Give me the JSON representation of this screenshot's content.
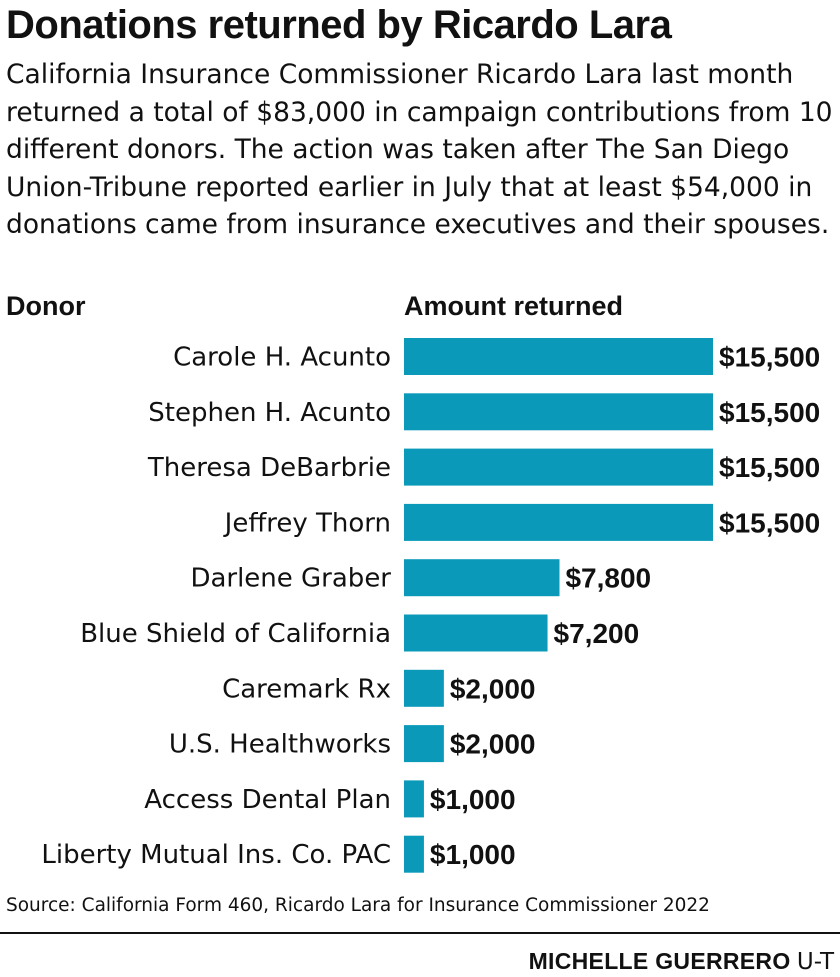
{
  "header": {
    "title": "Donations returned by Ricardo Lara",
    "subtitle": "California Insurance Commissioner Ricardo Lara last month returned a total of $83,000 in campaign contributions from 10 different donors. The action was taken after The San Diego Union-Tribune reported earlier in July that at least $54,000 in donations came from insurance executives and their spouses."
  },
  "columns": {
    "donor": "Donor",
    "amount": "Amount returned"
  },
  "chart_data": {
    "type": "bar",
    "orientation": "horizontal",
    "categories": [
      "Carole H. Acunto",
      "Stephen H. Acunto",
      "Theresa DeBarbrie",
      "Jeffrey Thorn",
      "Darlene Graber",
      "Blue Shield of California",
      "Caremark Rx",
      "U.S. Healthworks",
      "Access Dental Plan",
      "Liberty Mutual Ins. Co. PAC"
    ],
    "values": [
      15500,
      15500,
      15500,
      15500,
      7800,
      7200,
      2000,
      2000,
      1000,
      1000
    ],
    "value_labels": [
      "$15,500",
      "$15,500",
      "$15,500",
      "$15,500",
      "$7,800",
      "$7,200",
      "$2,000",
      "$2,000",
      "$1,000",
      "$1,000"
    ],
    "bar_color": "#0b99b9",
    "grid": false
  },
  "footer": {
    "source": "Source: California Form 460, Ricardo Lara for Insurance Commissioner 2022",
    "credit_name": "MICHELLE GUERRERO",
    "credit_org": "U-T"
  }
}
